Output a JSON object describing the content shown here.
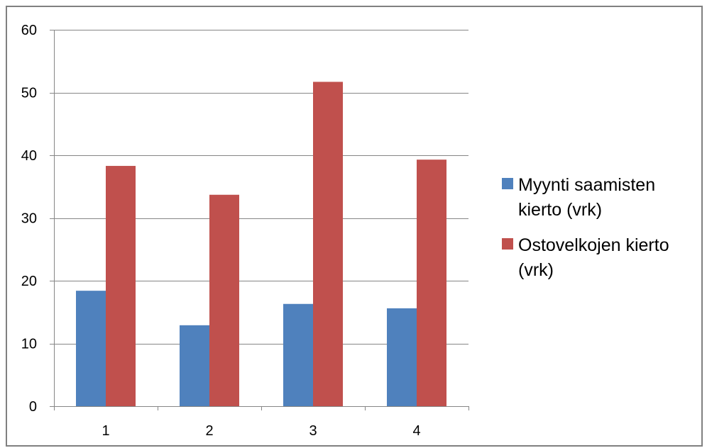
{
  "chart_data": {
    "type": "bar",
    "categories": [
      "1",
      "2",
      "3",
      "4"
    ],
    "series": [
      {
        "name": "Myynti saamisten kierto (vrk)",
        "values": [
          18.4,
          12.9,
          16.3,
          15.6
        ],
        "color": "#4F81BD"
      },
      {
        "name": "Ostovelkojen kierto (vrk)",
        "values": [
          38.3,
          33.7,
          51.7,
          39.3
        ],
        "color": "#C0504D"
      }
    ],
    "ylim": [
      0,
      60
    ],
    "y_ticks": [
      0,
      10,
      20,
      30,
      40,
      50,
      60
    ],
    "grid": true,
    "legend_position": "right",
    "legend_lines": [
      [
        "Myynti saamisten",
        "kierto (vrk)"
      ],
      [
        "Ostovelkojen kierto",
        "(vrk)"
      ]
    ],
    "colors": {
      "gridline": "#868686",
      "axis": "#868686",
      "frame": "#808080"
    }
  }
}
